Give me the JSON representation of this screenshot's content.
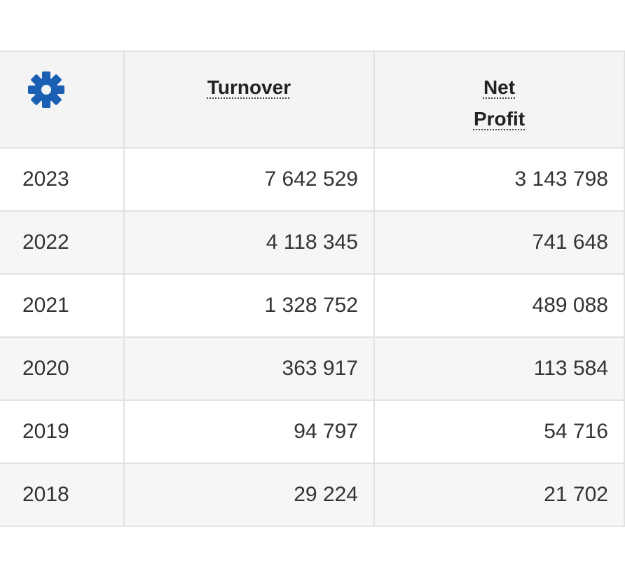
{
  "table": {
    "settings_icon": "gear-icon",
    "accent_color": "#1a5fb4",
    "headers": {
      "turnover_label": "Turnover",
      "net_label_line1": "Net",
      "net_label_line2": "Profit"
    },
    "rows": [
      {
        "year": "2023",
        "turnover": "7 642 529",
        "net_profit": "3 143 798"
      },
      {
        "year": "2022",
        "turnover": "4 118 345",
        "net_profit": "741 648"
      },
      {
        "year": "2021",
        "turnover": "1 328 752",
        "net_profit": "489 088"
      },
      {
        "year": "2020",
        "turnover": "363 917",
        "net_profit": "113 584"
      },
      {
        "year": "2019",
        "turnover": "94 797",
        "net_profit": "54 716"
      },
      {
        "year": "2018",
        "turnover": "29 224",
        "net_profit": "21 702"
      }
    ]
  }
}
